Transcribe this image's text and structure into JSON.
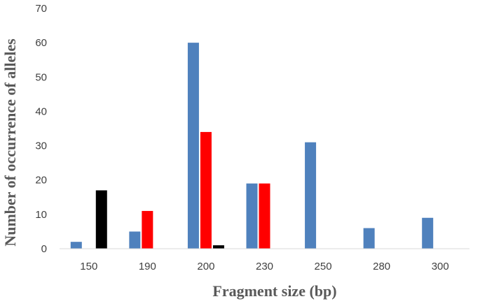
{
  "chart_data": {
    "type": "bar",
    "title": "",
    "xlabel": "Fragment size (bp)",
    "ylabel": "Number of occurrence of alleles",
    "categories": [
      "150",
      "190",
      "200",
      "230",
      "250",
      "280",
      "300"
    ],
    "ylim": [
      0,
      70
    ],
    "yticks": [
      0,
      10,
      20,
      30,
      40,
      50,
      60,
      70
    ],
    "grid": false,
    "legend": "none",
    "series": [
      {
        "color": "#4F81BD",
        "values": [
          2,
          5,
          60,
          19,
          31,
          6,
          9
        ]
      },
      {
        "color": "#FF0000",
        "values": [
          0,
          11,
          34,
          19,
          0,
          0,
          0
        ]
      },
      {
        "color": "#000000",
        "values": [
          17,
          0,
          1,
          0,
          0,
          0,
          0
        ]
      }
    ]
  }
}
